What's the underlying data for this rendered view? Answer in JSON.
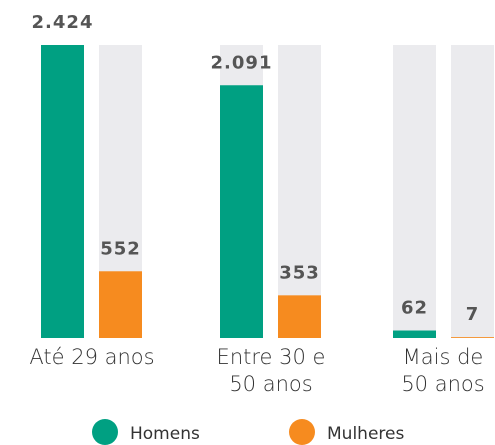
{
  "chart_data": {
    "type": "bar",
    "categories": [
      "Até 29 anos",
      "Entre 30 e 50 anos",
      "Mais de 50 anos"
    ],
    "series": [
      {
        "name": "Homens",
        "color": "#00a082",
        "values": [
          2424,
          2091,
          62
        ],
        "value_labels": [
          "2.424",
          "2.091",
          "62"
        ]
      },
      {
        "name": "Mulheres",
        "color": "#f68b1f",
        "values": [
          552,
          353,
          7
        ],
        "value_labels": [
          "552",
          "353",
          "7"
        ]
      }
    ],
    "background_color": "#ebebee"
  }
}
